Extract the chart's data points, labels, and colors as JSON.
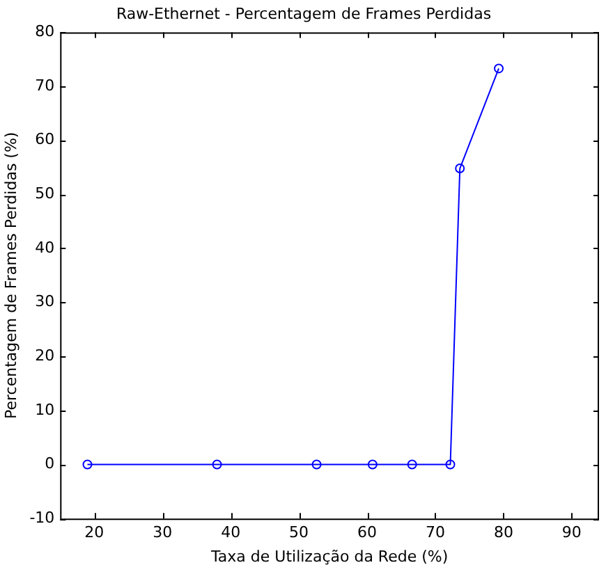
{
  "chart_data": {
    "type": "line",
    "title": "Raw-Ethernet - Percentagem de Frames Perdidas",
    "xlabel": "Taxa de Utilização da Rede (%)",
    "ylabel": "Percentagem de Frames Perdidas (%)",
    "x": [
      19,
      38,
      52.6,
      60.8,
      66.6,
      72.2,
      73.6,
      79.3
    ],
    "series": [
      {
        "color": "#0000ff",
        "values": [
          0,
          0,
          0,
          0,
          0,
          0,
          54.8,
          73.3
        ]
      }
    ],
    "xlim": [
      15,
      94
    ],
    "xticks": [
      20,
      30,
      40,
      50,
      60,
      70,
      80,
      90
    ],
    "ylim": [
      -10,
      80
    ],
    "yticks": [
      -10,
      0,
      10,
      20,
      30,
      40,
      50,
      60,
      70,
      80
    ],
    "marker": "circle",
    "line_style": "solid",
    "grid": false,
    "legend": false
  }
}
